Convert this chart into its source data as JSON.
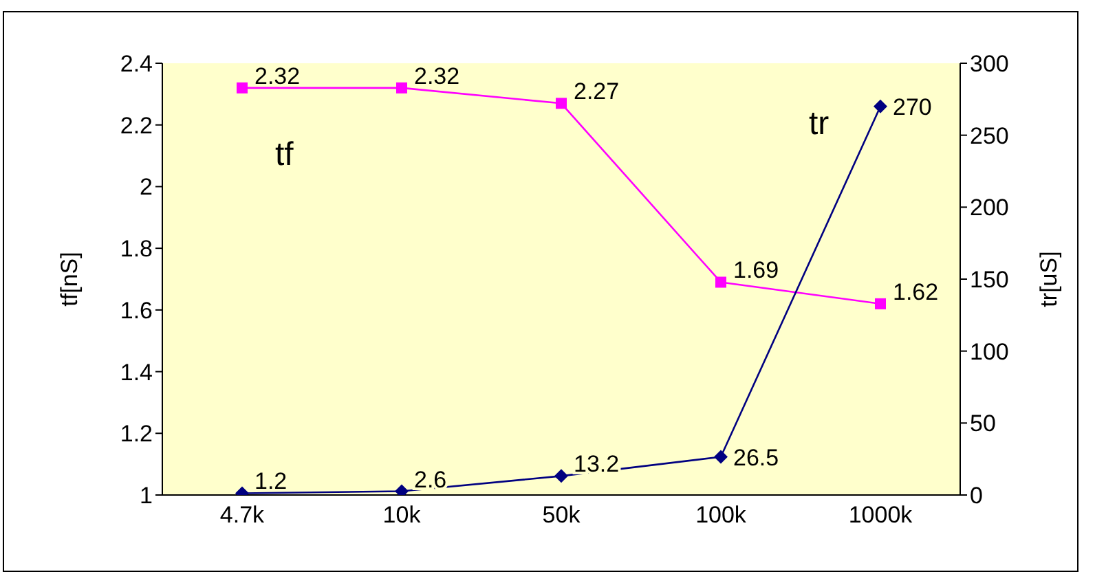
{
  "chart_data": {
    "type": "line",
    "categories": [
      "4.7k",
      "10k",
      "50k",
      "100k",
      "1000k"
    ],
    "ylabel": "tf[nS]",
    "y2label": "tr[uS]",
    "ylim": [
      1,
      2.4
    ],
    "yticks": [
      1,
      {
        "value": 1.2,
        "label": "1.2"
      },
      {
        "value": 1.4,
        "label": "1.4"
      },
      {
        "value": 1.6,
        "label": "1.6"
      },
      {
        "value": 1.8,
        "label": "1.8"
      },
      2,
      {
        "value": 2.2,
        "label": "2.2"
      },
      {
        "value": 2.4,
        "label": "2.4"
      }
    ],
    "y2lim": [
      0,
      300
    ],
    "y2ticks": [
      0,
      50,
      100,
      150,
      200,
      250,
      300
    ],
    "series": [
      {
        "name": "tf",
        "color": "#ff00ff",
        "values": [
          2.32,
          2.32,
          2.27,
          1.69,
          1.62
        ],
        "marker": "square"
      },
      {
        "name": "tr",
        "color": "#000080",
        "values": [
          1.2,
          2.6,
          13.2,
          26.5,
          270
        ],
        "axis": "y2",
        "marker": "diamond"
      }
    ],
    "data_labels": true,
    "grid": false
  }
}
